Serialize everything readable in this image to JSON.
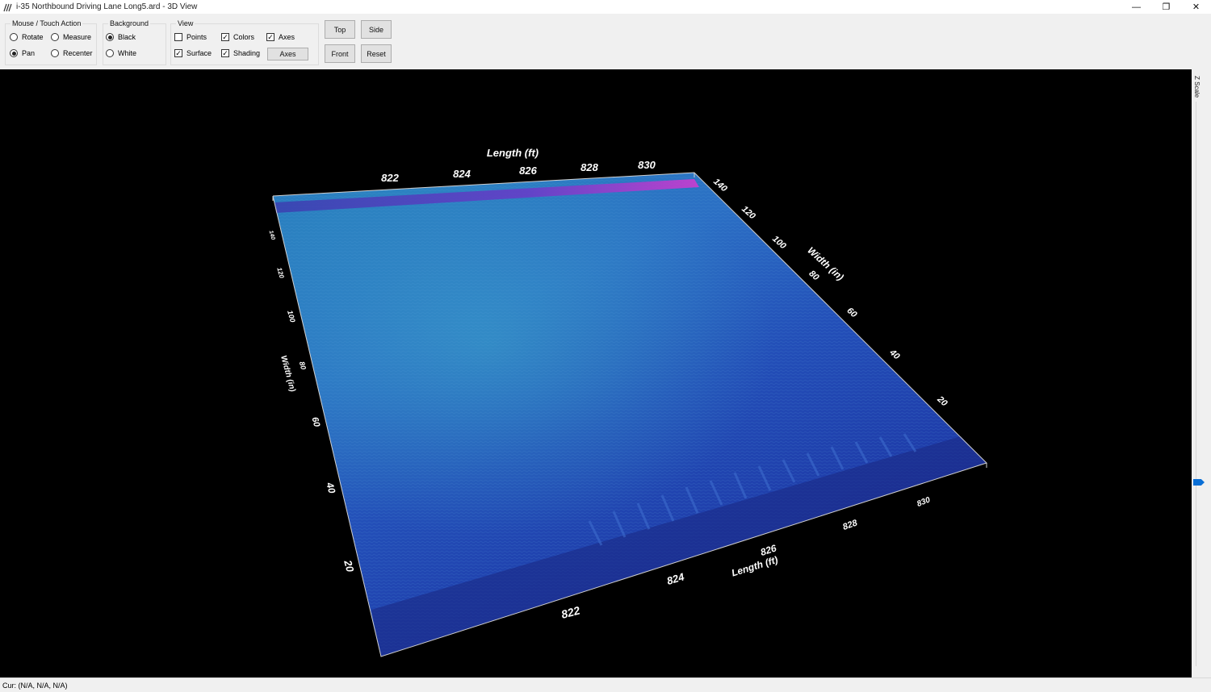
{
  "window": {
    "title": "i-35 Northbound Driving Lane Long5.ard - 3D View",
    "minimize": "—",
    "restore": "❐",
    "close": "✕"
  },
  "mouse_group": {
    "label": "Mouse / Touch Action",
    "rotate": "Rotate",
    "measure": "Measure",
    "pan": "Pan",
    "recenter": "Recenter",
    "selected": "Pan"
  },
  "background_group": {
    "label": "Background",
    "black": "Black",
    "white": "White",
    "selected": "Black"
  },
  "view_group": {
    "label": "View",
    "points": "Points",
    "colors": "Colors",
    "axes_check": "Axes",
    "surface": "Surface",
    "shading": "Shading",
    "axes_button": "Axes",
    "checked": {
      "points": false,
      "colors": true,
      "axes": true,
      "surface": true,
      "shading": true
    }
  },
  "view_buttons": {
    "top": "Top",
    "side": "Side",
    "front": "Front",
    "reset": "Reset"
  },
  "zscale": {
    "label": "Z Scale"
  },
  "status": {
    "cursor": "Cur: (N/A, N/A, N/A)"
  },
  "plot": {
    "back_length_title": "Length (ft)",
    "back_length_ticks": [
      "822",
      "824",
      "826",
      "828",
      "830"
    ],
    "right_width_title": "Width (in)",
    "right_width_ticks": [
      "140",
      "120",
      "100",
      "80",
      "60",
      "40",
      "20"
    ],
    "left_width_title": "Width (in)",
    "left_width_ticks": [
      "140",
      "120",
      "100",
      "80",
      "60",
      "40",
      "20"
    ],
    "front_length_title": "Length (ft)",
    "front_length_ticks": [
      "822",
      "824",
      "826",
      "828",
      "830"
    ]
  }
}
